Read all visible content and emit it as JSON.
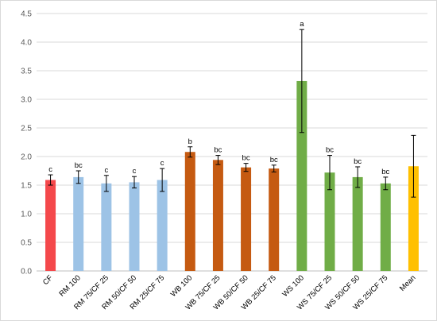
{
  "chart_data": {
    "type": "bar",
    "categories": [
      "CF",
      "RM 100",
      "RM 75/CF 25",
      "RM 50/CF 50",
      "RM 25/CF 75",
      "WB 100",
      "WB 75/CF 25",
      "WB 50/CF 50",
      "WB 25/CF 75",
      "WS 100",
      "WS 75/CF 25",
      "WS 50/CF 50",
      "WS 25/CF 75",
      "Mean"
    ],
    "values": [
      1.59,
      1.64,
      1.53,
      1.55,
      1.59,
      2.08,
      1.94,
      1.81,
      1.79,
      3.32,
      1.72,
      1.64,
      1.53,
      1.83
    ],
    "error": [
      0.09,
      0.11,
      0.14,
      0.1,
      0.2,
      0.09,
      0.08,
      0.07,
      0.06,
      0.9,
      0.3,
      0.18,
      0.11,
      0.54
    ],
    "labels": [
      "c",
      "bc",
      "c",
      "c",
      "c",
      "b",
      "bc",
      "bc",
      "bc",
      "a",
      "bc",
      "bc",
      "bc",
      ""
    ],
    "colors": [
      "#f4484b",
      "#9dc3e6",
      "#9dc3e6",
      "#9dc3e6",
      "#9dc3e6",
      "#c55a11",
      "#c55a11",
      "#c55a11",
      "#c55a11",
      "#70ad47",
      "#70ad47",
      "#70ad47",
      "#70ad47",
      "#ffc000"
    ],
    "title": "",
    "xlabel": "",
    "ylabel": "",
    "ylim": [
      0,
      4.5
    ],
    "yticks": [
      "0.0",
      "0.5",
      "1.0",
      "1.5",
      "2.0",
      "2.5",
      "3.0",
      "3.5",
      "4.0",
      "4.5"
    ],
    "grid": true,
    "legend": "none"
  }
}
